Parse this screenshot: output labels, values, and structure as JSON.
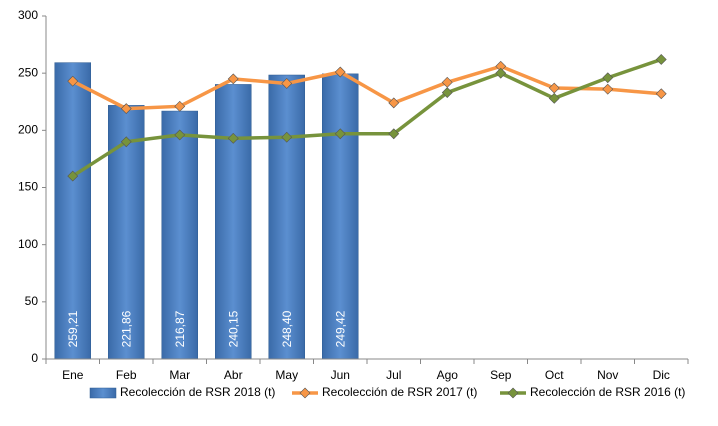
{
  "chart_data": {
    "type": "combo",
    "categories": [
      "Ene",
      "Feb",
      "Mar",
      "Abr",
      "May",
      "Jun",
      "Jul",
      "Ago",
      "Sep",
      "Oct",
      "Nov",
      "Dic"
    ],
    "series": [
      {
        "name": "Recolección de RSR 2018 (t)",
        "type": "bar",
        "color": "#4f81bd",
        "values": [
          259.21,
          221.86,
          216.87,
          240.15,
          248.4,
          249.42,
          null,
          null,
          null,
          null,
          null,
          null
        ],
        "value_labels": [
          "259,21",
          "221,86",
          "216,87",
          "240,15",
          "248,40",
          "249,42",
          null,
          null,
          null,
          null,
          null,
          null
        ]
      },
      {
        "name": "Recolección de RSR 2017 (t)",
        "type": "line",
        "color": "#f79646",
        "values": [
          243,
          219,
          221,
          245,
          241,
          251,
          224,
          242,
          256,
          237,
          236,
          232
        ]
      },
      {
        "name": "Recolección de RSR 2016 (t)",
        "type": "line",
        "color": "#77933c",
        "values": [
          160,
          190,
          196,
          193,
          194,
          197,
          197,
          233,
          250,
          228,
          246,
          262
        ]
      }
    ],
    "ylim": [
      0,
      300
    ],
    "yticks": [
      0,
      50,
      100,
      150,
      200,
      250,
      300
    ],
    "grid": false,
    "legend": "bottom"
  }
}
